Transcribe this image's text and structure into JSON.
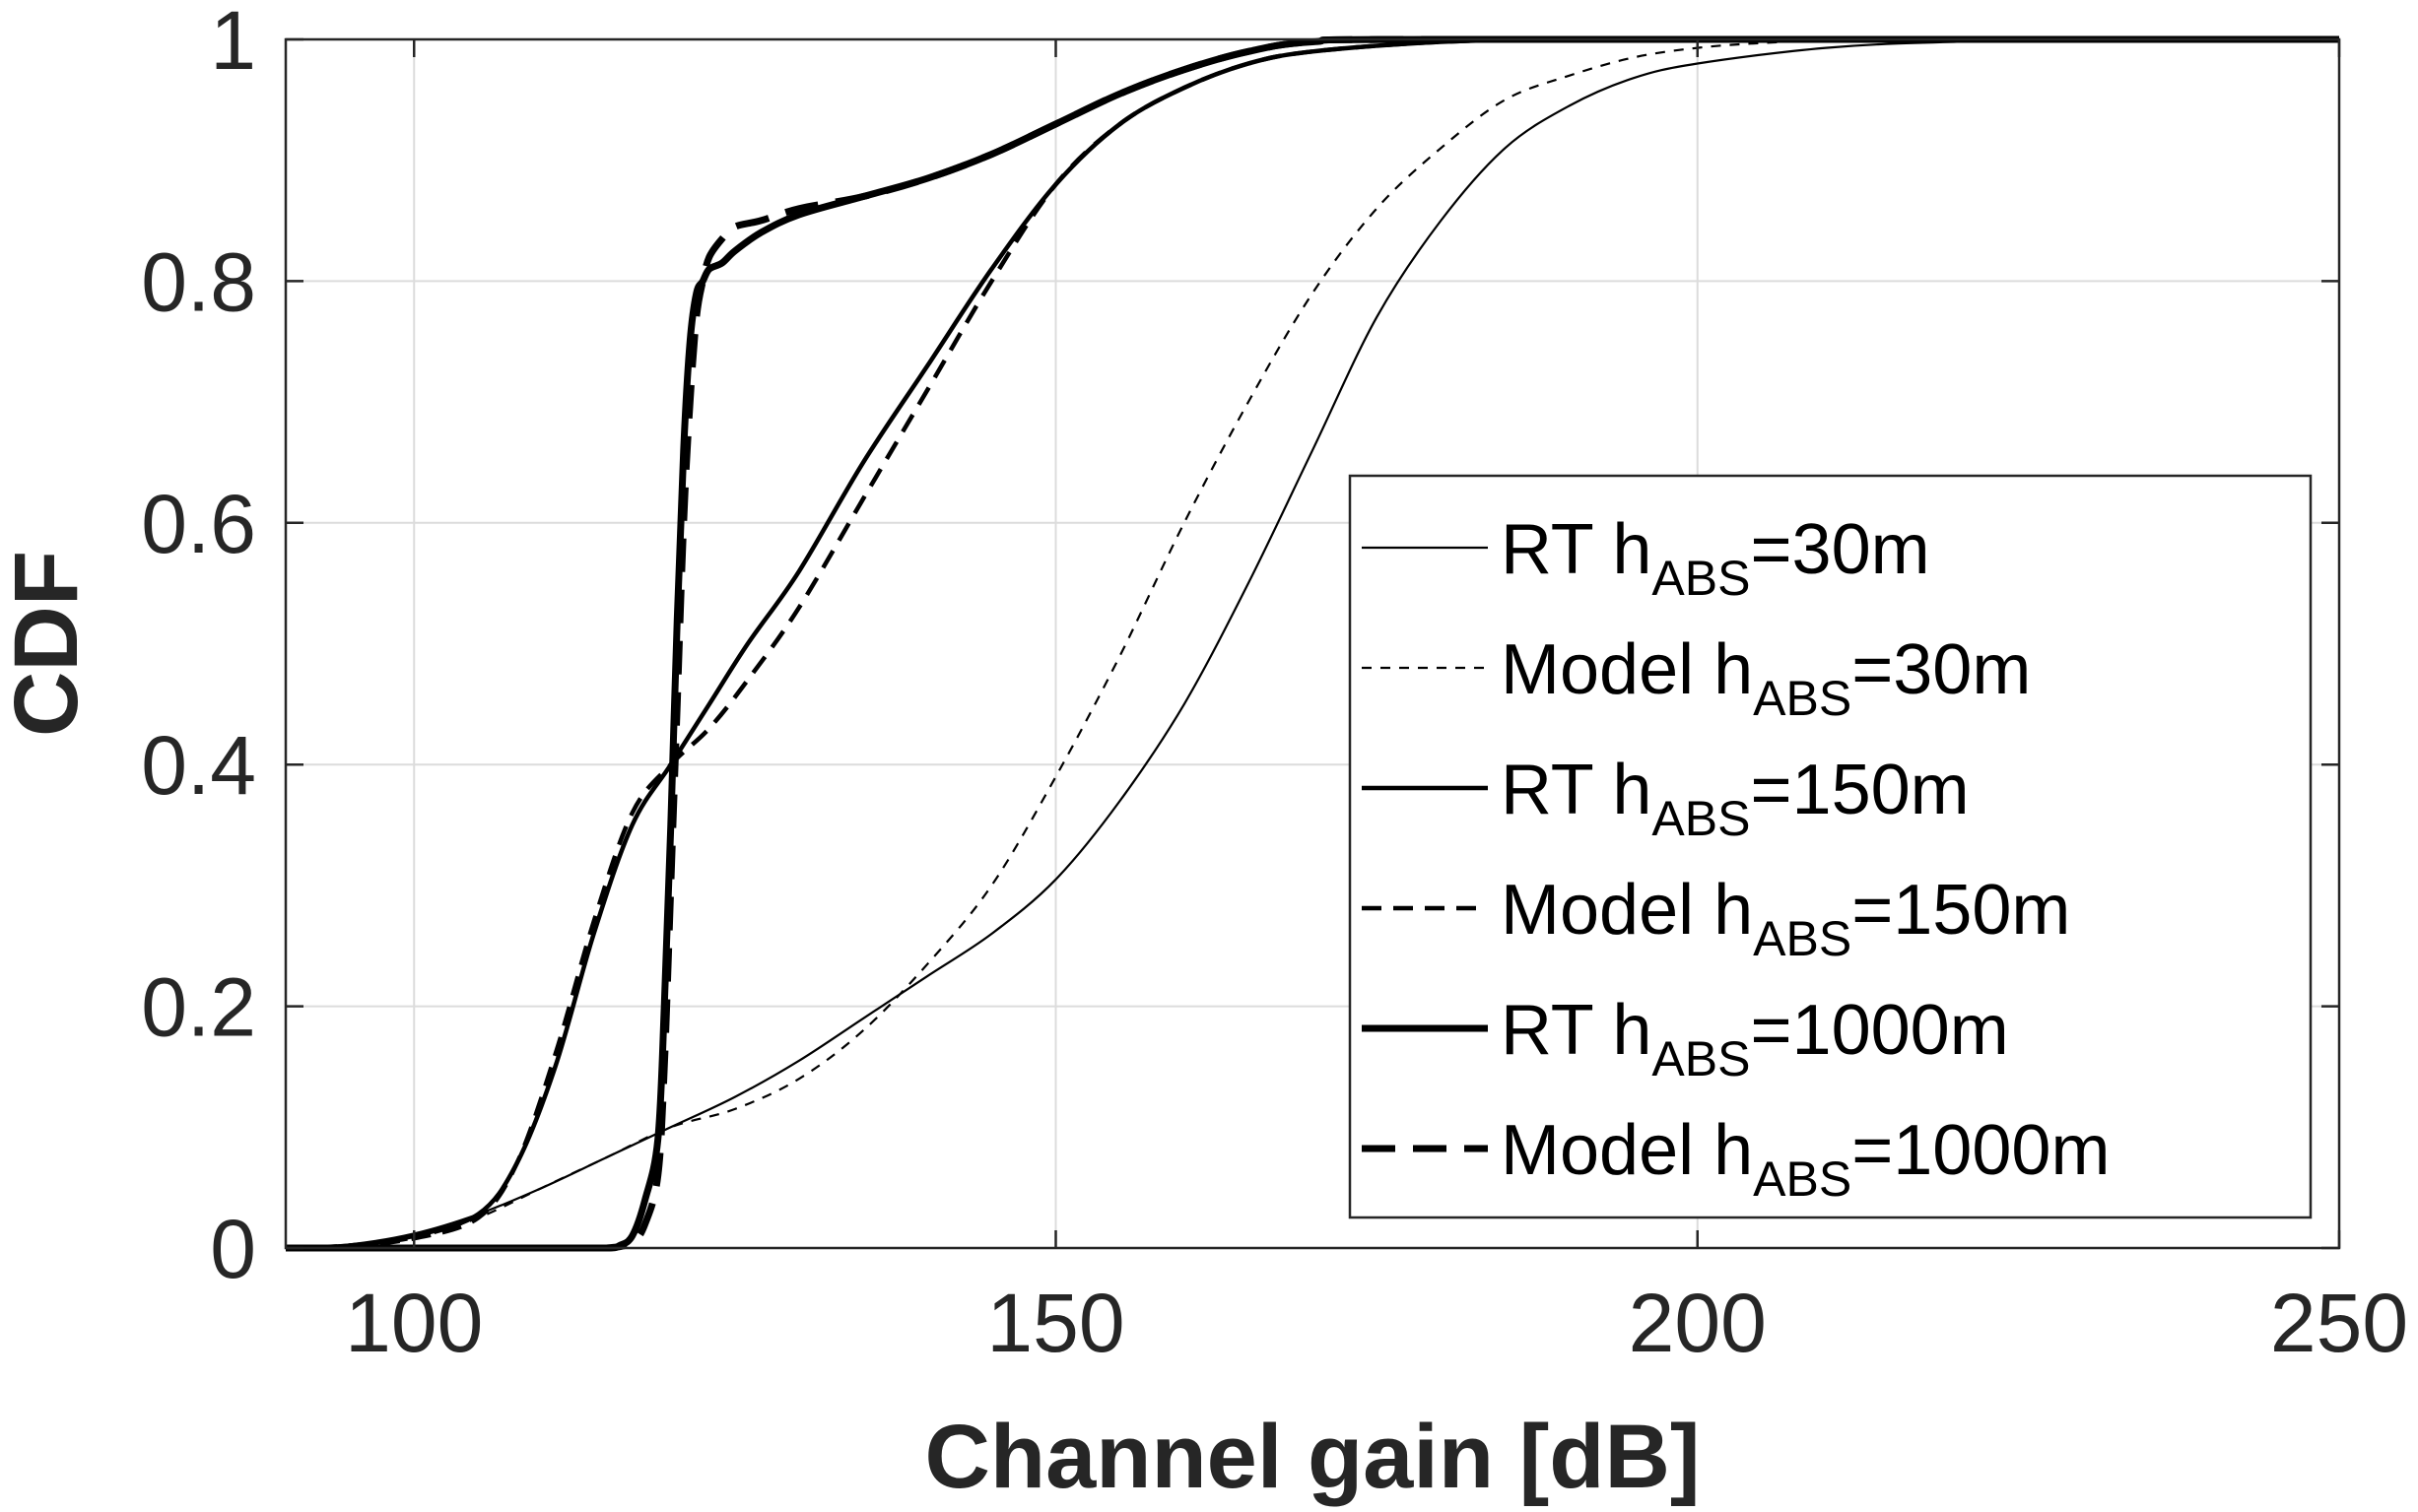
{
  "chart_data": {
    "type": "line",
    "title": "",
    "xlabel": "Channel gain [dB]",
    "ylabel": "CDF",
    "xlim": [
      90,
      250
    ],
    "ylim": [
      0,
      1
    ],
    "grid": true,
    "legend_position": "right",
    "xticks": [
      100,
      150,
      200,
      250
    ],
    "xtick_labels": [
      "100",
      "150",
      "200",
      "250"
    ],
    "yticks": [
      0,
      0.2,
      0.4,
      0.6,
      0.8,
      1
    ],
    "ytick_labels": [
      "0",
      "0.2",
      "0.4",
      "0.6",
      "0.8",
      "1"
    ],
    "series": [
      {
        "name": "RT h_ABS=30m",
        "legend": {
          "prefix": "RT  h",
          "sub": "ABS",
          "suffix": "=30m"
        },
        "style": "solid",
        "weight": "thin",
        "x": [
          90,
          95,
          100,
          105,
          110,
          115,
          120,
          125,
          130,
          135,
          140,
          145,
          150,
          155,
          160,
          165,
          170,
          175,
          180,
          185,
          190,
          195,
          200,
          210,
          220,
          235,
          250
        ],
        "y": [
          0,
          0.003,
          0.012,
          0.028,
          0.05,
          0.075,
          0.1,
          0.125,
          0.155,
          0.19,
          0.225,
          0.26,
          0.305,
          0.37,
          0.45,
          0.55,
          0.66,
          0.77,
          0.85,
          0.91,
          0.945,
          0.968,
          0.98,
          0.993,
          0.998,
          1,
          1
        ]
      },
      {
        "name": "Model h_ABS=30m",
        "legend": {
          "prefix": "Model  h",
          "sub": "ABS",
          "suffix": "=30m"
        },
        "style": "dashed",
        "weight": "thin",
        "x": [
          90,
          95,
          100,
          105,
          110,
          115,
          120,
          125,
          130,
          135,
          140,
          145,
          150,
          155,
          160,
          165,
          170,
          175,
          180,
          185,
          190,
          195,
          200,
          205,
          210,
          220,
          235,
          250
        ],
        "y": [
          0,
          0.002,
          0.008,
          0.025,
          0.05,
          0.075,
          0.1,
          0.115,
          0.14,
          0.18,
          0.235,
          0.3,
          0.39,
          0.49,
          0.6,
          0.7,
          0.79,
          0.86,
          0.91,
          0.95,
          0.97,
          0.985,
          0.993,
          0.997,
          0.999,
          1,
          1,
          1
        ]
      },
      {
        "name": "RT h_ABS=150m",
        "legend": {
          "prefix": "RT  h",
          "sub": "ABS",
          "suffix": "=150m"
        },
        "style": "solid",
        "weight": "medium",
        "x": [
          90,
          95,
          100,
          105,
          108,
          111,
          114,
          117,
          120,
          123,
          126,
          130,
          135,
          140,
          145,
          150,
          155,
          160,
          165,
          170,
          180,
          190,
          200,
          250
        ],
        "y": [
          0,
          0.002,
          0.01,
          0.028,
          0.07,
          0.15,
          0.26,
          0.35,
          0.4,
          0.45,
          0.5,
          0.56,
          0.65,
          0.73,
          0.81,
          0.88,
          0.93,
          0.96,
          0.98,
          0.99,
          0.998,
          1,
          1,
          1
        ]
      },
      {
        "name": "Model h_ABS=150m",
        "legend": {
          "prefix": "Model  h",
          "sub": "ABS",
          "suffix": "=150m"
        },
        "style": "dashed",
        "weight": "medium",
        "x": [
          90,
          95,
          100,
          105,
          108,
          111,
          114,
          117,
          120,
          123,
          126,
          130,
          135,
          140,
          145,
          150,
          155,
          160,
          165,
          170,
          180,
          190,
          200,
          250
        ],
        "y": [
          0,
          0.002,
          0.008,
          0.025,
          0.07,
          0.16,
          0.27,
          0.36,
          0.4,
          0.43,
          0.47,
          0.53,
          0.62,
          0.71,
          0.8,
          0.88,
          0.93,
          0.96,
          0.98,
          0.99,
          0.998,
          1,
          1,
          1
        ]
      },
      {
        "name": "RT h_ABS=1000m",
        "legend": {
          "prefix": "RT  h",
          "sub": "ABS",
          "suffix": "=1000m"
        },
        "style": "solid",
        "weight": "thick",
        "x": [
          90,
          100,
          105,
          110,
          115,
          116,
          117,
          118,
          119,
          119.5,
          120,
          120.5,
          121,
          121.5,
          122,
          122.5,
          123,
          124,
          125,
          127,
          130,
          135,
          140,
          145,
          150,
          155,
          160,
          165,
          170,
          180,
          250
        ],
        "y": [
          0,
          0,
          0,
          0,
          0,
          0.002,
          0.01,
          0.04,
          0.09,
          0.2,
          0.35,
          0.52,
          0.66,
          0.75,
          0.79,
          0.8,
          0.81,
          0.815,
          0.825,
          0.84,
          0.855,
          0.87,
          0.885,
          0.905,
          0.93,
          0.955,
          0.975,
          0.99,
          0.998,
          1,
          1
        ]
      },
      {
        "name": "Model h_ABS=1000m",
        "legend": {
          "prefix": "Model  h",
          "sub": "ABS",
          "suffix": "=1000m"
        },
        "style": "dashed",
        "weight": "thick",
        "x": [
          90,
          100,
          105,
          110,
          115,
          117,
          118,
          119,
          119.5,
          120,
          120.5,
          121,
          121.5,
          122,
          122.5,
          123,
          124,
          125,
          127,
          130,
          135,
          140,
          145,
          150,
          155,
          160,
          165,
          170,
          180,
          250
        ],
        "y": [
          0,
          0,
          0,
          0,
          0,
          0.005,
          0.02,
          0.06,
          0.15,
          0.3,
          0.45,
          0.6,
          0.7,
          0.77,
          0.8,
          0.82,
          0.835,
          0.845,
          0.85,
          0.86,
          0.87,
          0.885,
          0.905,
          0.93,
          0.955,
          0.975,
          0.99,
          0.998,
          1,
          1
        ]
      }
    ]
  },
  "colors": {
    "line": "#000000",
    "axis": "#262626",
    "grid": "#dcdcdc",
    "background": "#ffffff"
  }
}
